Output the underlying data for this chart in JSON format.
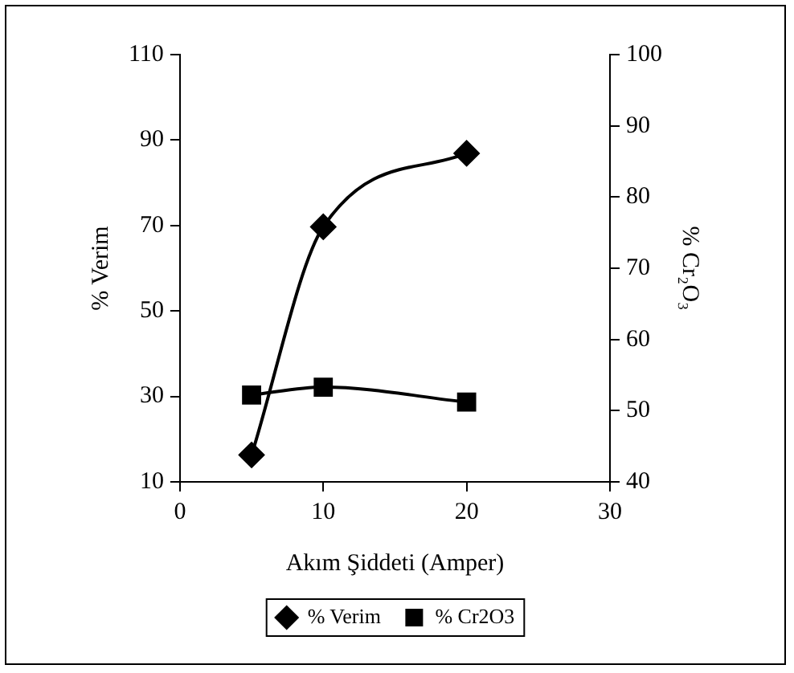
{
  "chart_data": {
    "type": "line",
    "xlabel": "Akım Şiddeti (Amper)",
    "ylabel": "% Verim",
    "y2label": "% Cr₂O₃",
    "x": [
      5,
      10,
      20
    ],
    "series": [
      {
        "name": "% Verim",
        "color": "#000000",
        "values": [
          16.3,
          69.7,
          86.9
        ],
        "marker": "diamond"
      },
      {
        "name": "% Cr2O3",
        "color": "#000000",
        "values": [
          52.2,
          53.3,
          51.2
        ],
        "marker": "square",
        "axis": "y2"
      }
    ],
    "xlim": [
      0,
      30
    ],
    "xticks": [
      0,
      10,
      20,
      30
    ],
    "ylim": [
      10,
      110
    ],
    "yticks": [
      10,
      30,
      50,
      70,
      90,
      110
    ],
    "y2lim": [
      40,
      100
    ],
    "y2ticks": [
      40,
      50,
      60,
      70,
      80,
      90,
      100
    ],
    "grid": false,
    "legend": "bottom",
    "line_style": "solid"
  }
}
